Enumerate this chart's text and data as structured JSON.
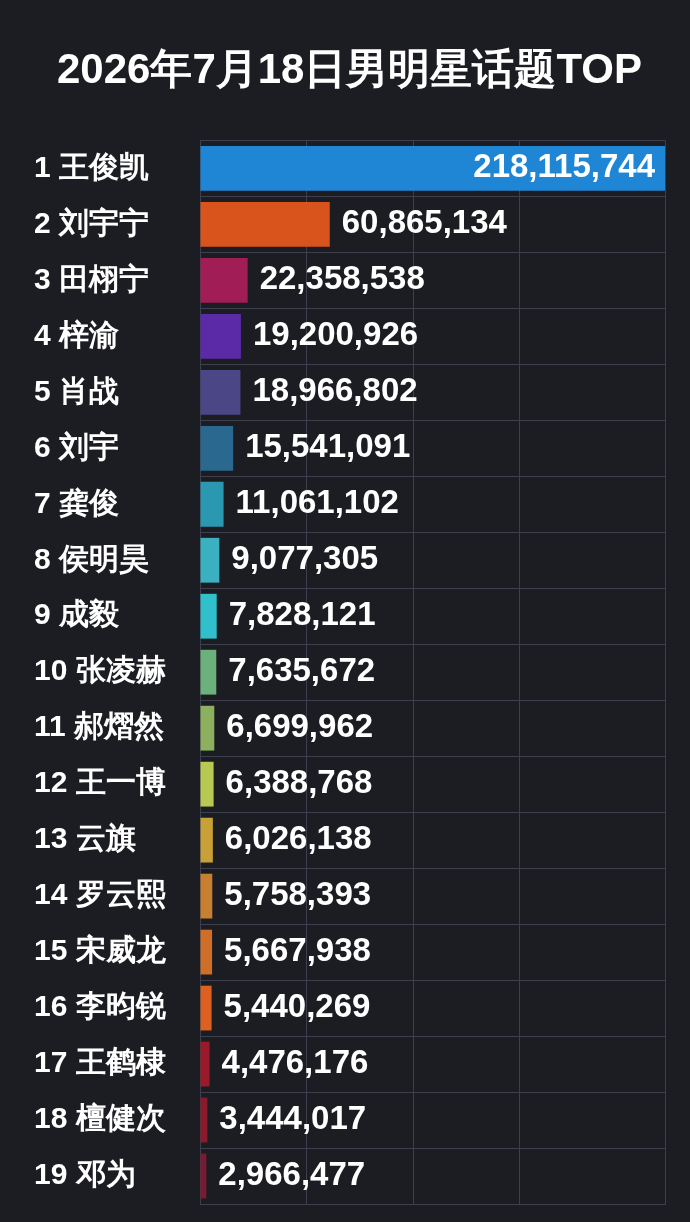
{
  "chart_data": {
    "type": "bar",
    "orientation": "horizontal",
    "title": "2026年7月18日男明星话题TOP",
    "categories": [
      "1 王俊凯",
      "2 刘宇宁",
      "3 田栩宁",
      "4 梓渝",
      "5 肖战",
      "6 刘宇",
      "7 龚俊",
      "8 侯明昊",
      "9 成毅",
      "10 张凌赫",
      "11 郝熠然",
      "12 王一博",
      "13 云旗",
      "14 罗云熙",
      "15 宋威龙",
      "16 李昀锐",
      "17 王鹤棣",
      "18 檀健次",
      "19 邓为"
    ],
    "values": [
      218115744,
      60865134,
      22358538,
      19200926,
      18966802,
      15541091,
      11061102,
      9077305,
      7828121,
      7635672,
      6699962,
      6388768,
      6026138,
      5758393,
      5667938,
      5440269,
      4476176,
      3444017,
      2966477
    ],
    "value_labels": [
      "218,115,744",
      "60,865,134",
      "22,358,538",
      "19,200,926",
      "18,966,802",
      "15,541,091",
      "11,061,102",
      "9,077,305",
      "7,828,121",
      "7,635,672",
      "6,699,962",
      "6,388,768",
      "6,026,138",
      "5,758,393",
      "5,667,938",
      "5,440,269",
      "4,476,176",
      "3,444,017",
      "2,966,477"
    ],
    "colors": [
      "#1f86d6",
      "#d9541c",
      "#a01e55",
      "#5b2aa6",
      "#4b4686",
      "#2a6890",
      "#2a98b0",
      "#3ab0c0",
      "#2fc0cc",
      "#6cb07c",
      "#8cb05e",
      "#b8c850",
      "#c8a038",
      "#c88030",
      "#cf6e28",
      "#dc6020",
      "#9a1a2a",
      "#8a1a2c",
      "#7a1a34"
    ],
    "grid": true,
    "tick_labels": "y"
  }
}
